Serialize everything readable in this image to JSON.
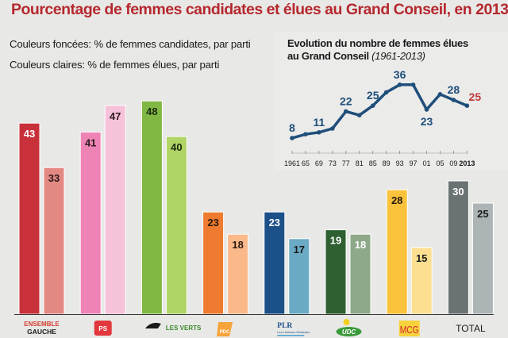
{
  "title": "Pourcentage de femmes candidates et élues au Grand Conseil, en 2013",
  "legend": {
    "dark": "Couleurs foncées: % de femmes candidates, par parti",
    "light": "Couleurs claires: % de femmes élues, par parti"
  },
  "colors": {
    "title": "#b5282e",
    "line": "#1f4e7a",
    "last_label": "#c0393b"
  },
  "chart_data": [
    {
      "type": "bar",
      "title": "Pourcentage de femmes candidates et élues au Grand Conseil, en 2013",
      "xlabel": "",
      "ylabel": "%",
      "ylim": [
        0,
        50
      ],
      "grid": false,
      "categories": [
        "Ensemble à Gauche",
        "PS",
        "Les Verts",
        "PDC",
        "PLR",
        "UDC",
        "MCG",
        "TOTAL"
      ],
      "series": [
        {
          "name": "% de femmes candidates",
          "values": [
            43,
            41,
            48,
            23,
            23,
            19,
            28,
            30
          ],
          "colors": [
            "#c8303a",
            "#ee84b6",
            "#80b843",
            "#ee7b30",
            "#1b5088",
            "#2d5f30",
            "#fbc23b",
            "#6b7272"
          ],
          "label_colors": [
            "#ffffff",
            "#2a1a1a",
            "#1a2a10",
            "#2a1a10",
            "#ffffff",
            "#ffffff",
            "#2a1a10",
            "#ffffff"
          ]
        },
        {
          "name": "% de femmes élues",
          "values": [
            33,
            47,
            40,
            18,
            17,
            18,
            15,
            25
          ],
          "colors": [
            "#e48884",
            "#f6c2da",
            "#b0d566",
            "#fbb98a",
            "#6aaac4",
            "#8ea88a",
            "#fcdf90",
            "#adb4b6"
          ],
          "label_colors": [
            "#2a1a1a",
            "#2a1a1a",
            "#1a2a10",
            "#2a1a10",
            "#1a1a1a",
            "#ffffff",
            "#1a1a1a",
            "#1a1a1a"
          ]
        }
      ],
      "party_logos": [
        "ENSEMBLE À GAUCHE",
        "PS",
        "LES VERTS",
        "PDC",
        "PLR Les Libéraux-Radicaux",
        "UDC",
        "MCG",
        "TOTAL"
      ]
    },
    {
      "type": "line",
      "title": "Evolution du nombre de femmes élues",
      "title_line2": "au Grand Conseil",
      "title_period": "(1961-2013)",
      "x": [
        "1961",
        "65",
        "69",
        "73",
        "77",
        "81",
        "85",
        "89",
        "93",
        "97",
        "01",
        "05",
        "09",
        "2013"
      ],
      "values": [
        8,
        10,
        11,
        13,
        22,
        20,
        25,
        32,
        36,
        36,
        23,
        31,
        28,
        25
      ],
      "labeled_points": {
        "1961": 8,
        "69": 11,
        "77": 22,
        "85": 25,
        "93": 36,
        "01": 23,
        "09": 28,
        "2013": 25
      },
      "ylim": [
        0,
        40
      ],
      "grid": false
    }
  ]
}
